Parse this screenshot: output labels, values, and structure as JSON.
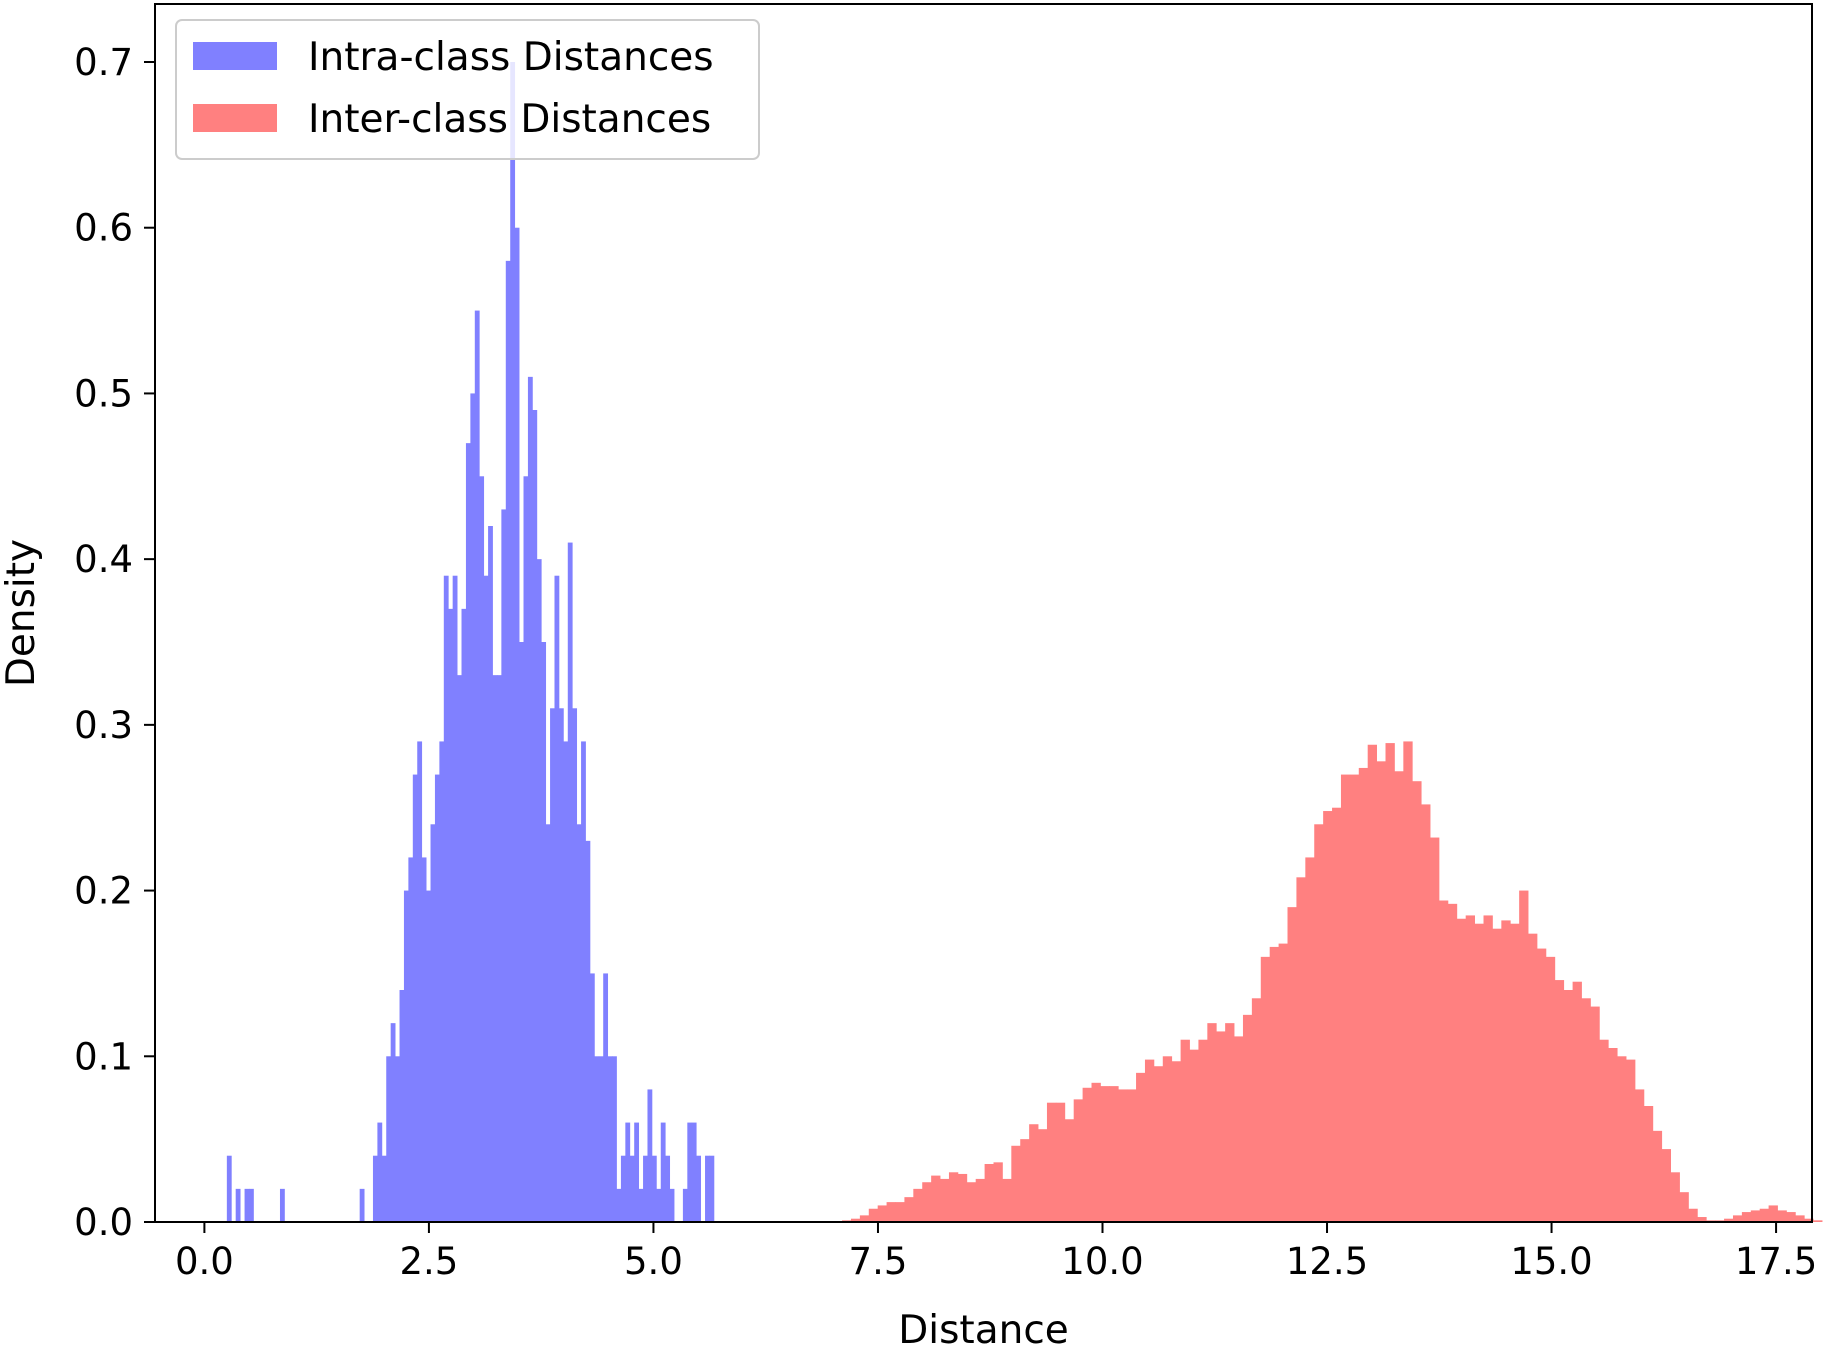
{
  "chart_data": {
    "type": "histogram",
    "xlabel": "Distance",
    "ylabel": "Density",
    "xlim": [
      -0.55,
      17.9
    ],
    "ylim": [
      0,
      0.735
    ],
    "xticks": [
      0.0,
      2.5,
      5.0,
      7.5,
      10.0,
      12.5,
      15.0,
      17.5
    ],
    "xtick_labels": [
      "0.0",
      "2.5",
      "5.0",
      "7.5",
      "10.0",
      "12.5",
      "15.0",
      "17.5"
    ],
    "yticks": [
      0.0,
      0.1,
      0.2,
      0.3,
      0.4,
      0.5,
      0.6,
      0.7
    ],
    "ytick_labels": [
      "0.0",
      "0.1",
      "0.2",
      "0.3",
      "0.4",
      "0.5",
      "0.6",
      "0.7"
    ],
    "grid": false,
    "legend_position": "top-left",
    "series": [
      {
        "name": "Intra-class Distances",
        "color": "#8080ff",
        "bin_start": 0.25,
        "bin_width": 0.0493,
        "values": [
          0.04,
          0,
          0.02,
          0,
          0.02,
          0.02,
          0,
          0,
          0,
          0,
          0,
          0,
          0.02,
          0,
          0,
          0,
          0,
          0,
          0,
          0,
          0,
          0,
          0,
          0,
          0,
          0,
          0,
          0,
          0,
          0,
          0.02,
          0,
          0,
          0.04,
          0.06,
          0.04,
          0.1,
          0.12,
          0.1,
          0.14,
          0.2,
          0.22,
          0.27,
          0.29,
          0.22,
          0.2,
          0.24,
          0.27,
          0.29,
          0.39,
          0.37,
          0.39,
          0.33,
          0.37,
          0.47,
          0.5,
          0.55,
          0.45,
          0.39,
          0.42,
          0.33,
          0.33,
          0.43,
          0.58,
          0.7,
          0.6,
          0.35,
          0.45,
          0.51,
          0.49,
          0.4,
          0.35,
          0.24,
          0.31,
          0.39,
          0.31,
          0.29,
          0.41,
          0.31,
          0.24,
          0.29,
          0.23,
          0.15,
          0.1,
          0.1,
          0.15,
          0.1,
          0.1,
          0.02,
          0.04,
          0.06,
          0.04,
          0.06,
          0.02,
          0.04,
          0.08,
          0.04,
          0.02,
          0.06,
          0.04,
          0.02,
          0,
          0,
          0.02,
          0.06,
          0.06,
          0.04,
          0,
          0.04,
          0.04
        ]
      },
      {
        "name": "Inter-class Distances",
        "color": "#ff8080",
        "bin_start": 7.1,
        "bin_width": 0.0992,
        "values": [
          0.001,
          0.002,
          0.004,
          0.008,
          0.01,
          0.012,
          0.012,
          0.015,
          0.02,
          0.024,
          0.028,
          0.026,
          0.03,
          0.029,
          0.024,
          0.026,
          0.035,
          0.036,
          0.026,
          0.046,
          0.05,
          0.059,
          0.056,
          0.072,
          0.072,
          0.062,
          0.074,
          0.081,
          0.084,
          0.082,
          0.082,
          0.08,
          0.08,
          0.09,
          0.098,
          0.094,
          0.1,
          0.097,
          0.11,
          0.104,
          0.11,
          0.12,
          0.115,
          0.12,
          0.112,
          0.125,
          0.135,
          0.16,
          0.166,
          0.168,
          0.19,
          0.208,
          0.22,
          0.24,
          0.248,
          0.25,
          0.27,
          0.27,
          0.274,
          0.288,
          0.278,
          0.289,
          0.272,
          0.29,
          0.266,
          0.252,
          0.232,
          0.194,
          0.192,
          0.183,
          0.185,
          0.18,
          0.185,
          0.177,
          0.182,
          0.18,
          0.2,
          0.174,
          0.165,
          0.16,
          0.146,
          0.14,
          0.145,
          0.135,
          0.13,
          0.11,
          0.105,
          0.1,
          0.098,
          0.08,
          0.07,
          0.055,
          0.044,
          0.03,
          0.018,
          0.008,
          0.003,
          0.001,
          0.001,
          0.002,
          0.004,
          0.006,
          0.007,
          0.008,
          0.01,
          0.007,
          0.006,
          0.004,
          0.002,
          0.001
        ]
      }
    ]
  }
}
